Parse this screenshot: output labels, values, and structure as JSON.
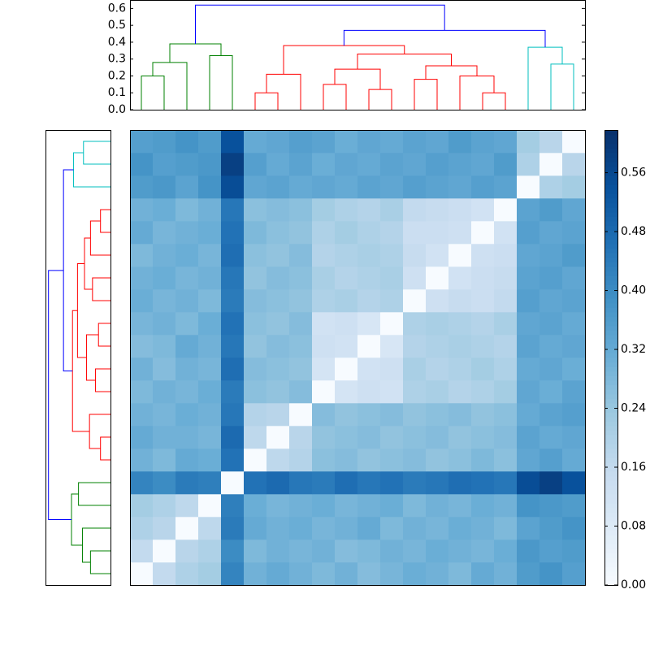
{
  "chart_data": {
    "type": "clustermap",
    "dendrogram": {
      "ylim": [
        0,
        0.65
      ],
      "yticks": [
        {
          "value": 0,
          "label": "0.0"
        },
        0.1,
        0.2,
        0.3,
        0.4,
        0.5,
        0.6
      ],
      "tree": {
        "h": 0.62,
        "color": "#0000ff",
        "children": [
          {
            "h": 0.39,
            "color": "#008000",
            "children": [
              {
                "h": 0.28,
                "color": "#008000",
                "children": [
                  {
                    "h": 0.2,
                    "color": "#008000",
                    "children": [
                      {
                        "h": 0
                      },
                      {
                        "h": 0
                      }
                    ]
                  },
                  {
                    "h": 0
                  }
                ]
              },
              {
                "h": 0.32,
                "color": "#008000",
                "children": [
                  {
                    "h": 0
                  },
                  {
                    "h": 0
                  }
                ]
              }
            ]
          },
          {
            "h": 0.47,
            "color": "#0000ff",
            "children": [
              {
                "h": 0.38,
                "color": "#ff0000",
                "children": [
                  {
                    "h": 0.21,
                    "color": "#ff0000",
                    "children": [
                      {
                        "h": 0.1,
                        "color": "#ff0000",
                        "children": [
                          {
                            "h": 0
                          },
                          {
                            "h": 0
                          }
                        ]
                      },
                      {
                        "h": 0
                      }
                    ]
                  },
                  {
                    "h": 0.33,
                    "color": "#ff0000",
                    "children": [
                      {
                        "h": 0.24,
                        "color": "#ff0000",
                        "children": [
                          {
                            "h": 0.15,
                            "color": "#ff0000",
                            "children": [
                              {
                                "h": 0
                              },
                              {
                                "h": 0
                              }
                            ]
                          },
                          {
                            "h": 0.12,
                            "color": "#ff0000",
                            "children": [
                              {
                                "h": 0
                              },
                              {
                                "h": 0
                              }
                            ]
                          }
                        ]
                      },
                      {
                        "h": 0.26,
                        "color": "#ff0000",
                        "children": [
                          {
                            "h": 0.18,
                            "color": "#ff0000",
                            "children": [
                              {
                                "h": 0
                              },
                              {
                                "h": 0
                              }
                            ]
                          },
                          {
                            "h": 0.2,
                            "color": "#ff0000",
                            "children": [
                              {
                                "h": 0
                              },
                              {
                                "h": 0.1,
                                "color": "#ff0000",
                                "children": [
                                  {
                                    "h": 0
                                  },
                                  {
                                    "h": 0
                                  }
                                ]
                              }
                            ]
                          }
                        ]
                      }
                    ]
                  }
                ]
              },
              {
                "h": 0.37,
                "color": "#00bfbf",
                "children": [
                  {
                    "h": 0
                  },
                  {
                    "h": 0.27,
                    "color": "#00bfbf",
                    "children": [
                      {
                        "h": 0
                      },
                      {
                        "h": 0
                      }
                    ]
                  }
                ]
              }
            ]
          }
        ]
      }
    },
    "heatmap": {
      "colormap": "Blues",
      "zlim": [
        0,
        0.618
      ],
      "zticks": [
        {
          "value": 0,
          "label": "0.00"
        },
        0.08,
        0.16,
        0.24,
        0.32,
        {
          "value": 0.4,
          "label": "0.40"
        },
        0.48,
        0.56
      ],
      "matrix": [
        [
          0,
          0.16,
          0.2,
          0.22,
          0.42,
          0.3,
          0.32,
          0.3,
          0.28,
          0.3,
          0.27,
          0.29,
          0.31,
          0.3,
          0.28,
          0.32,
          0.3,
          0.36,
          0.38,
          0.35
        ],
        [
          0.16,
          0,
          0.18,
          0.2,
          0.4,
          0.28,
          0.3,
          0.29,
          0.3,
          0.27,
          0.28,
          0.3,
          0.29,
          0.31,
          0.3,
          0.29,
          0.31,
          0.37,
          0.35,
          0.36
        ],
        [
          0.2,
          0.18,
          0,
          0.17,
          0.44,
          0.32,
          0.3,
          0.31,
          0.29,
          0.3,
          0.32,
          0.28,
          0.3,
          0.29,
          0.31,
          0.3,
          0.28,
          0.34,
          0.36,
          0.38
        ],
        [
          0.22,
          0.2,
          0.17,
          0,
          0.43,
          0.31,
          0.29,
          0.3,
          0.31,
          0.29,
          0.3,
          0.31,
          0.28,
          0.3,
          0.29,
          0.31,
          0.3,
          0.38,
          0.37,
          0.36
        ],
        [
          0.42,
          0.4,
          0.44,
          0.43,
          0,
          0.46,
          0.48,
          0.45,
          0.44,
          0.47,
          0.45,
          0.46,
          0.44,
          0.45,
          0.47,
          0.46,
          0.45,
          0.55,
          0.58,
          0.54
        ],
        [
          0.3,
          0.28,
          0.32,
          0.31,
          0.46,
          0,
          0.17,
          0.19,
          0.26,
          0.27,
          0.25,
          0.26,
          0.27,
          0.25,
          0.26,
          0.28,
          0.26,
          0.33,
          0.35,
          0.32
        ],
        [
          0.32,
          0.3,
          0.3,
          0.29,
          0.48,
          0.17,
          0,
          0.18,
          0.25,
          0.26,
          0.27,
          0.25,
          0.26,
          0.27,
          0.25,
          0.26,
          0.27,
          0.34,
          0.32,
          0.33
        ],
        [
          0.3,
          0.29,
          0.31,
          0.3,
          0.45,
          0.19,
          0.18,
          0,
          0.27,
          0.25,
          0.26,
          0.27,
          0.25,
          0.26,
          0.27,
          0.25,
          0.26,
          0.32,
          0.34,
          0.35
        ],
        [
          0.28,
          0.3,
          0.29,
          0.31,
          0.44,
          0.26,
          0.25,
          0.27,
          0,
          0.11,
          0.13,
          0.12,
          0.2,
          0.21,
          0.19,
          0.2,
          0.22,
          0.33,
          0.31,
          0.34
        ],
        [
          0.3,
          0.27,
          0.3,
          0.29,
          0.47,
          0.27,
          0.26,
          0.25,
          0.11,
          0,
          0.12,
          0.13,
          0.21,
          0.19,
          0.2,
          0.22,
          0.2,
          0.32,
          0.33,
          0.31
        ],
        [
          0.27,
          0.28,
          0.32,
          0.3,
          0.45,
          0.25,
          0.27,
          0.26,
          0.13,
          0.12,
          0,
          0.1,
          0.19,
          0.2,
          0.21,
          0.2,
          0.19,
          0.34,
          0.32,
          0.33
        ],
        [
          0.29,
          0.3,
          0.28,
          0.31,
          0.46,
          0.26,
          0.25,
          0.27,
          0.12,
          0.13,
          0.1,
          0,
          0.2,
          0.21,
          0.2,
          0.19,
          0.21,
          0.33,
          0.34,
          0.32
        ],
        [
          0.31,
          0.29,
          0.3,
          0.28,
          0.44,
          0.27,
          0.26,
          0.25,
          0.2,
          0.21,
          0.19,
          0.2,
          0,
          0.13,
          0.15,
          0.14,
          0.16,
          0.35,
          0.33,
          0.34
        ],
        [
          0.3,
          0.31,
          0.29,
          0.3,
          0.45,
          0.25,
          0.27,
          0.26,
          0.21,
          0.19,
          0.2,
          0.21,
          0.13,
          0,
          0.12,
          0.14,
          0.15,
          0.34,
          0.35,
          0.33
        ],
        [
          0.28,
          0.3,
          0.31,
          0.29,
          0.47,
          0.26,
          0.25,
          0.27,
          0.19,
          0.2,
          0.21,
          0.2,
          0.15,
          0.12,
          0,
          0.13,
          0.14,
          0.33,
          0.34,
          0.36
        ],
        [
          0.32,
          0.29,
          0.3,
          0.31,
          0.46,
          0.28,
          0.26,
          0.25,
          0.2,
          0.22,
          0.2,
          0.19,
          0.14,
          0.14,
          0.13,
          0,
          0.12,
          0.35,
          0.33,
          0.34
        ],
        [
          0.3,
          0.31,
          0.28,
          0.3,
          0.45,
          0.26,
          0.27,
          0.26,
          0.22,
          0.2,
          0.19,
          0.21,
          0.16,
          0.15,
          0.14,
          0.12,
          0,
          0.34,
          0.36,
          0.33
        ],
        [
          0.36,
          0.37,
          0.34,
          0.38,
          0.55,
          0.33,
          0.34,
          0.32,
          0.33,
          0.32,
          0.34,
          0.33,
          0.35,
          0.34,
          0.33,
          0.35,
          0.34,
          0,
          0.2,
          0.22
        ],
        [
          0.38,
          0.35,
          0.36,
          0.37,
          0.58,
          0.35,
          0.32,
          0.34,
          0.31,
          0.33,
          0.32,
          0.34,
          0.33,
          0.35,
          0.34,
          0.33,
          0.36,
          0.2,
          0,
          0.18
        ],
        [
          0.35,
          0.36,
          0.38,
          0.36,
          0.54,
          0.32,
          0.33,
          0.35,
          0.34,
          0.31,
          0.33,
          0.32,
          0.34,
          0.33,
          0.36,
          0.34,
          0.33,
          0.22,
          0.18,
          0
        ]
      ]
    }
  }
}
